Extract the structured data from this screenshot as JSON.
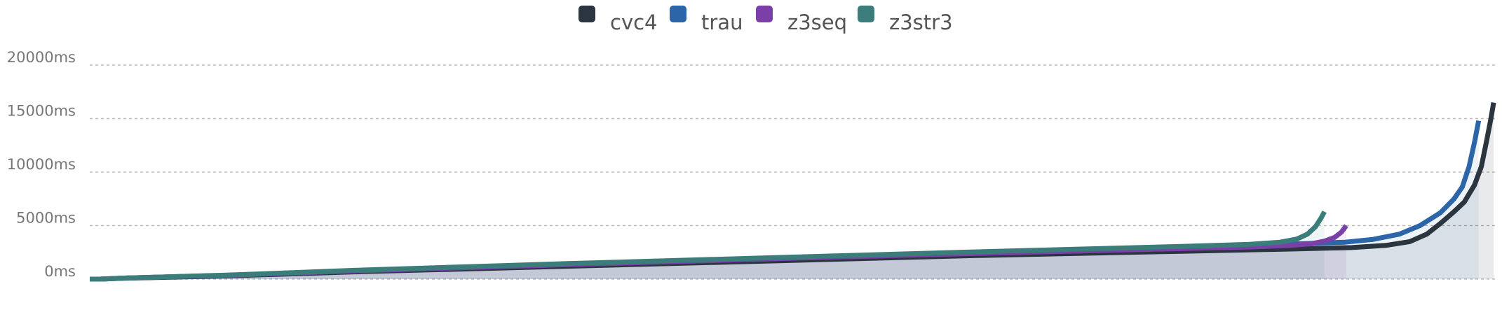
{
  "chart_data": {
    "type": "line",
    "title": "",
    "xlabel": "",
    "ylabel": "",
    "ylim": [
      0,
      20000
    ],
    "yticks": [
      0,
      5000,
      10000,
      15000,
      20000
    ],
    "ytick_labels": [
      "0ms",
      "5000ms",
      "10000ms",
      "15000ms",
      "20000ms"
    ],
    "grid": true,
    "area_fill": true,
    "legend_position": "top-center",
    "series": [
      {
        "name": "cvc4",
        "color": "#2b3540",
        "points": [
          [
            0,
            0
          ],
          [
            15,
            0
          ],
          [
            50,
            80
          ],
          [
            200,
            300
          ],
          [
            400,
            700
          ],
          [
            700,
            1200
          ],
          [
            1000,
            1700
          ],
          [
            1300,
            2200
          ],
          [
            1600,
            2600
          ],
          [
            1750,
            2800
          ],
          [
            1850,
            2950
          ],
          [
            1900,
            3150
          ],
          [
            1935,
            3500
          ],
          [
            1960,
            4200
          ],
          [
            1980,
            5200
          ],
          [
            2000,
            6300
          ],
          [
            2015,
            7200
          ],
          [
            2030,
            8800
          ],
          [
            2040,
            10500
          ],
          [
            2048,
            13000
          ],
          [
            2054,
            15000
          ],
          [
            2058,
            16500
          ]
        ]
      },
      {
        "name": "trau",
        "color": "#2c65a8",
        "points": [
          [
            0,
            0
          ],
          [
            15,
            0
          ],
          [
            50,
            100
          ],
          [
            200,
            350
          ],
          [
            400,
            800
          ],
          [
            700,
            1350
          ],
          [
            1000,
            1900
          ],
          [
            1300,
            2450
          ],
          [
            1600,
            2950
          ],
          [
            1750,
            3250
          ],
          [
            1840,
            3450
          ],
          [
            1880,
            3700
          ],
          [
            1920,
            4200
          ],
          [
            1950,
            5000
          ],
          [
            1980,
            6200
          ],
          [
            2000,
            7500
          ],
          [
            2012,
            8600
          ],
          [
            2022,
            10500
          ],
          [
            2030,
            12800
          ],
          [
            2036,
            14800
          ]
        ]
      },
      {
        "name": "z3seq",
        "color": "#7b3fa8",
        "points": [
          [
            0,
            0
          ],
          [
            15,
            0
          ],
          [
            50,
            100
          ],
          [
            200,
            350
          ],
          [
            400,
            800
          ],
          [
            700,
            1350
          ],
          [
            1000,
            1900
          ],
          [
            1300,
            2400
          ],
          [
            1600,
            2850
          ],
          [
            1700,
            3000
          ],
          [
            1760,
            3150
          ],
          [
            1790,
            3300
          ],
          [
            1810,
            3550
          ],
          [
            1825,
            3900
          ],
          [
            1835,
            4400
          ],
          [
            1842,
            5000
          ]
        ]
      },
      {
        "name": "z3str3",
        "color": "#3a7d7a",
        "points": [
          [
            0,
            0
          ],
          [
            15,
            0
          ],
          [
            50,
            100
          ],
          [
            200,
            370
          ],
          [
            400,
            850
          ],
          [
            700,
            1450
          ],
          [
            1000,
            2000
          ],
          [
            1300,
            2550
          ],
          [
            1600,
            3050
          ],
          [
            1700,
            3250
          ],
          [
            1745,
            3450
          ],
          [
            1770,
            3750
          ],
          [
            1785,
            4200
          ],
          [
            1797,
            4900
          ],
          [
            1805,
            5700
          ],
          [
            1810,
            6300
          ]
        ]
      }
    ]
  }
}
